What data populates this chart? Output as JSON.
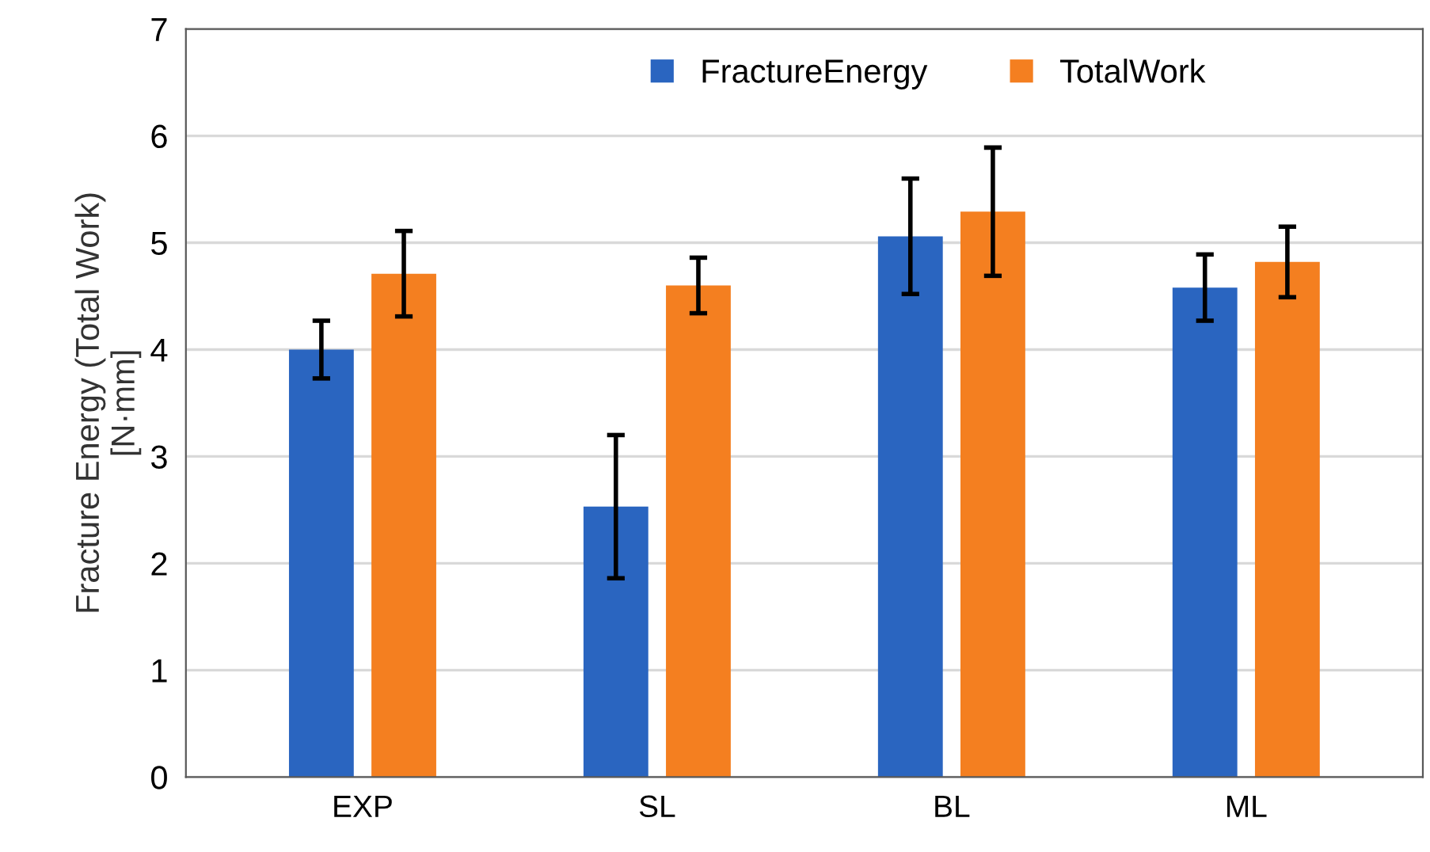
{
  "chart_data": {
    "type": "bar",
    "ylabel": "Fracture Energy (Total Work)\n[N·mm]",
    "categories": [
      "EXP",
      "SL",
      "BL",
      "ML"
    ],
    "series": [
      {
        "name": "FractureEnergy",
        "color": "#2a65c0",
        "values": [
          4.0,
          2.53,
          5.06,
          4.58
        ],
        "errors": [
          0.27,
          0.67,
          0.54,
          0.31
        ]
      },
      {
        "name": "TotalWork",
        "color": "#f47f20",
        "values": [
          4.71,
          4.6,
          5.29,
          4.82
        ],
        "errors": [
          0.4,
          0.26,
          0.6,
          0.33
        ]
      }
    ],
    "ylim": [
      0,
      7
    ],
    "yticks": [
      0,
      1,
      2,
      3,
      4,
      5,
      6,
      7
    ],
    "grid": "y",
    "legend": "top"
  }
}
